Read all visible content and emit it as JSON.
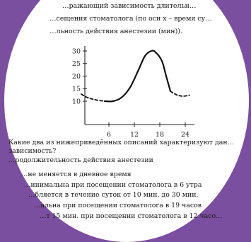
{
  "problem": {
    "header_lines": [
      "…ражающий зависимость длительн…",
      "…сещения стоматолога (по оси x – время су…",
      "…льность действия анестезии (мин))."
    ],
    "question_lines": [
      "Какие   два   из   нижеприведённых   описаний   характеризуют   дан…",
      "зависимость?",
      "…родолжительность действия анестезии"
    ],
    "options": [
      "…не меняется в дневное время",
      "…инимальна при посещении стоматолога в 6 утра",
      "…бляется в течение суток от 10 мин. до 30 мин.",
      "…альна при посещении стоматолога в 19 часов",
      "…т 15 мин. при посещении стоматолога в 12 часо…"
    ]
  },
  "chart_data": {
    "type": "line",
    "x_ticks": [
      6,
      12,
      18,
      24
    ],
    "y_ticks": [
      10,
      15,
      20,
      25,
      30
    ],
    "xlim": [
      -1,
      26
    ],
    "ylim": [
      8,
      33
    ],
    "series": [
      {
        "style": "dashed",
        "points": [
          [
            -0.5,
            12.8
          ],
          [
            1,
            11.4
          ],
          [
            3,
            10.5
          ],
          [
            5,
            10.0
          ]
        ]
      },
      {
        "style": "solid",
        "points": [
          [
            5,
            10.0
          ],
          [
            7,
            10.0
          ],
          [
            9,
            11.5
          ],
          [
            11,
            15.5
          ],
          [
            13,
            22.5
          ],
          [
            14.5,
            28
          ],
          [
            16,
            30
          ],
          [
            17,
            29.5
          ],
          [
            18.5,
            26
          ],
          [
            19.5,
            20
          ],
          [
            20.5,
            14
          ]
        ]
      },
      {
        "style": "dashed",
        "points": [
          [
            20.5,
            14
          ],
          [
            22,
            12.5
          ],
          [
            23.5,
            12.0
          ],
          [
            25,
            12.4
          ]
        ]
      }
    ]
  }
}
